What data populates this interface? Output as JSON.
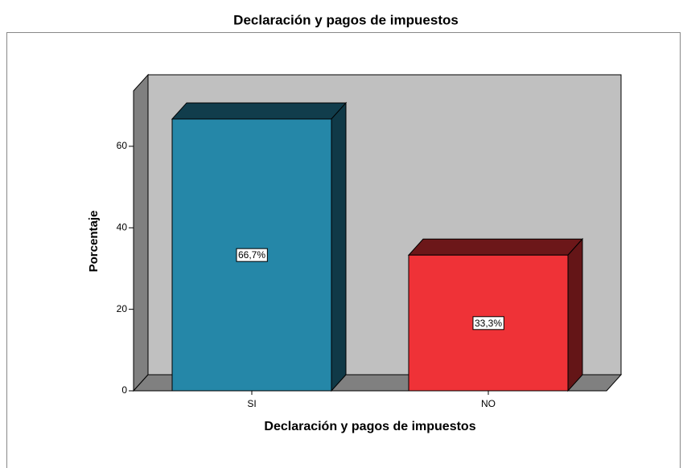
{
  "chart_data": {
    "type": "bar3d",
    "title": "Declaración y pagos de impuestos",
    "x_label": "Declaración y pagos de impuestos",
    "y_label": "Porcentaje",
    "categories": [
      "SI",
      "NO"
    ],
    "values": [
      66.7,
      33.3
    ],
    "value_labels": [
      "66,7%",
      "33,3%"
    ],
    "colors": [
      "#2587a8",
      "#ef3237"
    ],
    "ylim": [
      0,
      73.6
    ],
    "yticks": [
      0,
      20,
      40,
      60
    ]
  }
}
